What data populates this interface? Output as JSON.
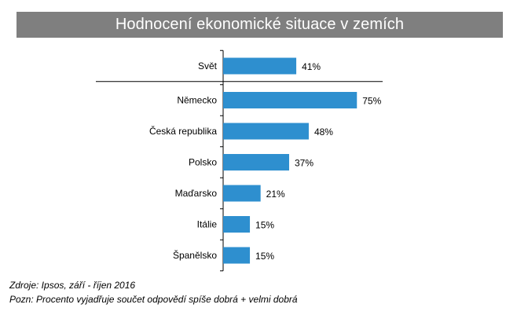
{
  "chart_data": {
    "type": "bar",
    "orientation": "horizontal",
    "title": "Hodnocení ekonomické situace v zemích",
    "categories": [
      "Svět",
      "Německo",
      "Česká republika",
      "Polsko",
      "Maďarsko",
      "Itálie",
      "Španělsko"
    ],
    "values": [
      41,
      75,
      48,
      37,
      21,
      15,
      15
    ],
    "value_labels": [
      "41%",
      "75%",
      "48%",
      "37%",
      "21%",
      "15%",
      "15%"
    ],
    "unit": "%",
    "xlim": [
      0,
      100
    ],
    "grid": false,
    "bar_color": "#2e8fcf",
    "separator_after": "Svět"
  },
  "footnotes": {
    "source": "Zdroje: Ipsos, září - říjen 2016",
    "note": "Pozn: Procento vyjadřuje součet odpovědí spíše dobrá + velmi dobrá"
  },
  "colors": {
    "title_background": "#7f7f7f",
    "title_text": "#ffffff",
    "axis": "#000000"
  }
}
